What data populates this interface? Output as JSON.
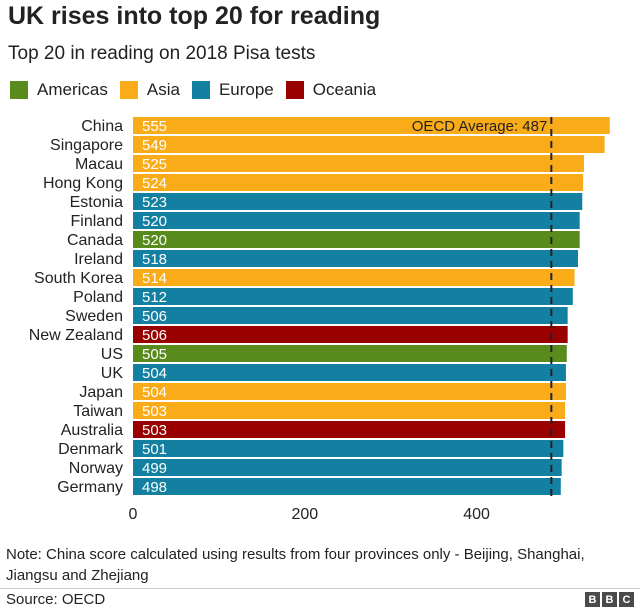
{
  "header": {
    "title": "UK rises into top 20 for reading",
    "subtitle": "Top 20 in reading on 2018 Pisa tests"
  },
  "legend": [
    {
      "name": "Americas",
      "color": "#588B1B"
    },
    {
      "name": "Asia",
      "color": "#FAAB18"
    },
    {
      "name": "Europe",
      "color": "#1380A1"
    },
    {
      "name": "Oceania",
      "color": "#990000"
    }
  ],
  "chart_data": {
    "type": "bar",
    "orientation": "horizontal",
    "categories": [
      "China",
      "Singapore",
      "Macau",
      "Hong Kong",
      "Estonia",
      "Finland",
      "Canada",
      "Ireland",
      "South Korea",
      "Poland",
      "Sweden",
      "New Zealand",
      "US",
      "UK",
      "Japan",
      "Taiwan",
      "Australia",
      "Denmark",
      "Norway",
      "Germany"
    ],
    "values": [
      555,
      549,
      525,
      524,
      523,
      520,
      520,
      518,
      514,
      512,
      506,
      506,
      505,
      504,
      504,
      503,
      503,
      501,
      499,
      498
    ],
    "regions": [
      "Asia",
      "Asia",
      "Asia",
      "Asia",
      "Europe",
      "Europe",
      "Americas",
      "Europe",
      "Asia",
      "Europe",
      "Europe",
      "Oceania",
      "Americas",
      "Europe",
      "Asia",
      "Asia",
      "Oceania",
      "Europe",
      "Europe",
      "Europe"
    ],
    "x_ticks": [
      0,
      200,
      400
    ],
    "xlim": [
      0,
      560
    ],
    "reference_line": {
      "value": 487,
      "label": "OECD Average: 487"
    },
    "legend_position": "top-left",
    "grid": false
  },
  "note": "Note: China score calculated using results from four provinces only - Beijing, Shanghai, Jiangsu and Zhejiang",
  "footer": {
    "source": "Source: OECD",
    "logo_letters": [
      "B",
      "B",
      "C"
    ]
  }
}
